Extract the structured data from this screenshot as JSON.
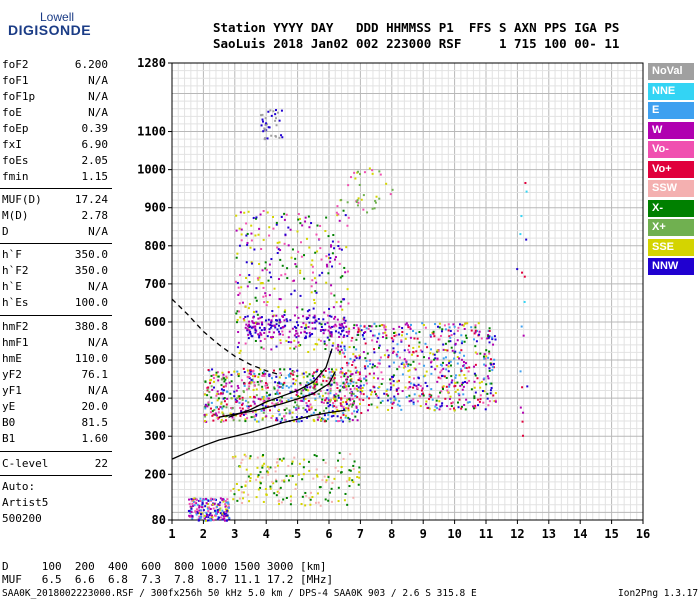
{
  "logo": {
    "line1": "Lowell",
    "line2": "DIGISONDE"
  },
  "header": {
    "row1": "Station YYYY DAY   DDD HHMMSS P1  FFS S AXN PPS IGA PS",
    "row2": "SaoLuis 2018 Jan02 002 223000 RSF     1 715 100 00- 11"
  },
  "params": {
    "group1": [
      {
        "label": "foF2",
        "value": "6.200"
      },
      {
        "label": "foF1",
        "value": "N/A"
      },
      {
        "label": "foF1p",
        "value": "N/A"
      },
      {
        "label": "foE",
        "value": "N/A"
      },
      {
        "label": "foEp",
        "value": "0.39"
      },
      {
        "label": "fxI",
        "value": "6.90"
      },
      {
        "label": "foEs",
        "value": "2.05"
      },
      {
        "label": "fmin",
        "value": "1.15"
      }
    ],
    "group2": [
      {
        "label": "MUF(D)",
        "value": "17.24"
      },
      {
        "label": "M(D)",
        "value": "2.78"
      },
      {
        "label": "D",
        "value": "N/A"
      }
    ],
    "group3": [
      {
        "label": "h`F",
        "value": "350.0"
      },
      {
        "label": "h`F2",
        "value": "350.0"
      },
      {
        "label": "h`E",
        "value": "N/A"
      },
      {
        "label": "h`Es",
        "value": "100.0"
      }
    ],
    "group4": [
      {
        "label": "hmF2",
        "value": "380.8"
      },
      {
        "label": "hmF1",
        "value": "N/A"
      },
      {
        "label": "hmE",
        "value": "110.0"
      },
      {
        "label": "yF2",
        "value": "76.1"
      },
      {
        "label": "yF1",
        "value": "N/A"
      },
      {
        "label": "yE",
        "value": "20.0"
      },
      {
        "label": "B0",
        "value": "81.5"
      },
      {
        "label": "B1",
        "value": "1.60"
      }
    ],
    "clevel": {
      "label": "C-level",
      "value": "22"
    },
    "auto": [
      "Auto:",
      "Artist5",
      "500200"
    ]
  },
  "legend": [
    {
      "label": "NoVal",
      "color": "#a0a0a0"
    },
    {
      "label": "NNE",
      "color": "#33d4f4"
    },
    {
      "label": "E",
      "color": "#3ea0f0"
    },
    {
      "label": "W",
      "color": "#b000b0"
    },
    {
      "label": "Vo-",
      "color": "#f050b0"
    },
    {
      "label": "Vo+",
      "color": "#e0003c"
    },
    {
      "label": "SSW",
      "color": "#f4b0b0"
    },
    {
      "label": "X-",
      "color": "#008000"
    },
    {
      "label": "X+",
      "color": "#70b050"
    },
    {
      "label": "SSE",
      "color": "#d4d400"
    },
    {
      "label": "NNW",
      "color": "#2000d0"
    }
  ],
  "footer": {
    "d_row": "D     100  200  400  600  800 1000 1500 3000 [km]",
    "muf_row": "MUF   6.5  6.6  6.8  7.3  7.8  8.7 11.1 17.2 [MHz]",
    "file_row": "SAA0K_2018002223000.RSF / 300fx256h 50 kHz 5.0 km / DPS-4 SAA0K 903 / 2.6 S 315.8 E",
    "version": "Ion2Png 1.3.17"
  },
  "chart_data": {
    "type": "scatter",
    "title": "",
    "xlabel": "",
    "ylabel": "",
    "xlim": [
      1,
      16
    ],
    "ylim": [
      80,
      1280
    ],
    "x_ticks": [
      "1",
      "2",
      "3",
      "4",
      "5",
      "6",
      "7",
      "8",
      "9",
      "10",
      "11",
      "12",
      "13",
      "14",
      "15",
      "16"
    ],
    "y_ticks": [
      {
        "v": 80,
        "label": "80"
      },
      {
        "v": 200,
        "label": "200"
      },
      {
        "v": 300,
        "label": "300"
      },
      {
        "v": 400,
        "label": "400"
      },
      {
        "v": 500,
        "label": "500"
      },
      {
        "v": 600,
        "label": "600"
      },
      {
        "v": 700,
        "label": "700"
      },
      {
        "v": 800,
        "label": "800"
      },
      {
        "v": 900,
        "label": "900"
      },
      {
        "v": 1000,
        "label": "1000"
      },
      {
        "v": 1100,
        "label": "1100"
      },
      {
        "v": 1280,
        "label": "1280"
      }
    ],
    "clusters": [
      {
        "xr": [
          2.0,
          7.0
        ],
        "yr": [
          340,
          480
        ],
        "n": 700,
        "colors": [
          "#f050b0",
          "#d4d400",
          "#008000",
          "#b000b0",
          "#3ea0f0",
          "#2000d0",
          "#e0003c",
          "#70b050"
        ]
      },
      {
        "xr": [
          6.3,
          11.3
        ],
        "yr": [
          370,
          600
        ],
        "n": 650,
        "colors": [
          "#b000b0",
          "#d4d400",
          "#e0003c",
          "#f050b0",
          "#008000",
          "#2000d0",
          "#3ea0f0"
        ]
      },
      {
        "xr": [
          3.0,
          6.6
        ],
        "yr": [
          520,
          900
        ],
        "n": 320,
        "colors": [
          "#b000b0",
          "#008000",
          "#d4d400",
          "#2000d0",
          "#f050b0"
        ]
      },
      {
        "xr": [
          3.3,
          6.5
        ],
        "yr": [
          560,
          620
        ],
        "n": 180,
        "colors": [
          "#b000b0",
          "#2000d0"
        ]
      },
      {
        "xr": [
          1.5,
          2.8
        ],
        "yr": [
          80,
          140
        ],
        "n": 200,
        "colors": [
          "#b000b0",
          "#2000d0",
          "#d4d400",
          "#f050b0",
          "#3ea0f0"
        ]
      },
      {
        "xr": [
          2.8,
          7.0
        ],
        "yr": [
          120,
          260
        ],
        "n": 180,
        "colors": [
          "#d4d400",
          "#f4b0b0",
          "#008000"
        ]
      },
      {
        "xr": [
          3.8,
          4.5
        ],
        "yr": [
          1080,
          1160
        ],
        "n": 40,
        "colors": [
          "#a0a0a0",
          "#2000d0"
        ]
      },
      {
        "xr": [
          6.2,
          8.0
        ],
        "yr": [
          880,
          1020
        ],
        "n": 40,
        "colors": [
          "#70b050",
          "#f050b0",
          "#d4d400"
        ]
      },
      {
        "xr": [
          11.9,
          12.3
        ],
        "yr": [
          280,
          990
        ],
        "n": 18,
        "colors": [
          "#33d4f4",
          "#3ea0f0",
          "#b000b0",
          "#2000d0",
          "#e0003c"
        ]
      }
    ],
    "curves": [
      {
        "name": "",
        "style": "solid",
        "points": [
          [
            1,
            240
          ],
          [
            1.5,
            258
          ],
          [
            2,
            275
          ],
          [
            2.5,
            290
          ],
          [
            3,
            300
          ],
          [
            3.5,
            310
          ],
          [
            4,
            322
          ],
          [
            4.5,
            335
          ],
          [
            5,
            345
          ],
          [
            5.5,
            355
          ],
          [
            6,
            362
          ],
          [
            6.5,
            368
          ]
        ]
      },
      {
        "name": "",
        "style": "dashed",
        "points": [
          [
            1,
            660
          ],
          [
            1.5,
            620
          ],
          [
            2,
            575
          ],
          [
            2.5,
            540
          ],
          [
            3,
            510
          ],
          [
            3.5,
            488
          ],
          [
            4,
            472
          ],
          [
            4.5,
            460
          ]
        ]
      },
      {
        "name": "",
        "style": "solid",
        "points": [
          [
            2.5,
            350
          ],
          [
            3,
            358
          ],
          [
            3.5,
            365
          ],
          [
            4,
            375
          ],
          [
            4.5,
            385
          ],
          [
            5,
            398
          ],
          [
            5.5,
            412
          ],
          [
            6,
            438
          ],
          [
            6.2,
            470
          ]
        ]
      },
      {
        "name": "",
        "style": "solid",
        "points": [
          [
            2.8,
            350
          ],
          [
            3.5,
            370
          ],
          [
            4,
            390
          ],
          [
            4.5,
            405
          ],
          [
            5,
            420
          ],
          [
            5.5,
            442
          ],
          [
            5.9,
            480
          ],
          [
            6.1,
            530
          ]
        ]
      }
    ]
  }
}
